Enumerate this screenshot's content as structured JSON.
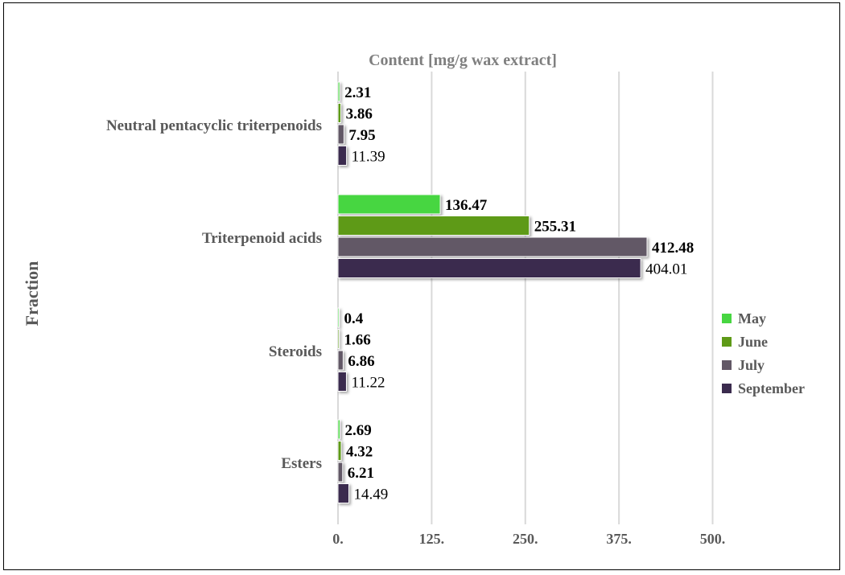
{
  "chart_data": {
    "type": "bar",
    "orientation": "horizontal",
    "title": "Content [mg/g wax extract]",
    "ylabel": "Fraction",
    "xlabel": "",
    "categories": [
      "Neutral pentacyclic triterpenoids",
      "Triterpenoid acids",
      "Steroids",
      "Esters"
    ],
    "xlim": [
      0,
      500
    ],
    "xticks": [
      0,
      125,
      250,
      375,
      500
    ],
    "xtick_labels": [
      "0.",
      "125.",
      "250.",
      "375.",
      "500."
    ],
    "grid": "vertical",
    "legend_position": "right",
    "series": [
      {
        "name": "May",
        "color": "#47d641",
        "values": [
          2.31,
          136.47,
          0.4,
          2.69
        ],
        "labels": [
          "2.31",
          "136.47",
          "0.4",
          "2.69"
        ],
        "label_bold": true
      },
      {
        "name": "June",
        "color": "#5e9a17",
        "values": [
          3.86,
          255.31,
          1.66,
          4.32
        ],
        "labels": [
          "3.86",
          "255.31",
          "1.66",
          "4.32"
        ],
        "label_bold": true
      },
      {
        "name": "July",
        "color": "#625866",
        "values": [
          7.95,
          412.48,
          6.86,
          6.21
        ],
        "labels": [
          "7.95",
          "412.48",
          "6.86",
          "6.21"
        ],
        "label_bold": true
      },
      {
        "name": "September",
        "color": "#3b2b4e",
        "values": [
          11.39,
          404.01,
          11.22,
          14.49
        ],
        "labels": [
          "11.39",
          "404.01",
          "11.22",
          "14.49"
        ],
        "label_bold": false
      }
    ]
  }
}
